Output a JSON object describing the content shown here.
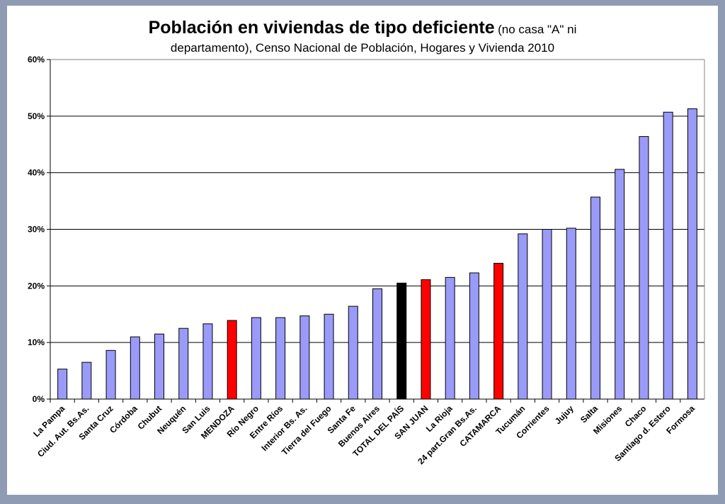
{
  "chart_data": {
    "type": "bar",
    "title": "Población en viviendas de tipo deficiente",
    "title_note": "(no casa \"A\" ni",
    "subtitle": "departamento), Censo Nacional de Población, Hogares y Vivienda 2010",
    "xlabel": "",
    "ylabel": "",
    "ylim": [
      0,
      60
    ],
    "yticks": [
      "0%",
      "10%",
      "20%",
      "30%",
      "40%",
      "50%",
      "60%"
    ],
    "grid": true,
    "legend": "none",
    "categories": [
      "La Pampa",
      "Ciud. Aut. Bs.As.",
      "Santa Cruz",
      "Córdoba",
      "Chubut",
      "Neuquén",
      "San Luis",
      "MENDOZA",
      "Río Negro",
      "Entre Ríos",
      "Interior Bs. As.",
      "Tierra del Fuego",
      "Santa Fe",
      "Buenos Aires",
      "TOTAL DEL PAÍS",
      "SAN JUAN",
      "La Rioja",
      "24 part.Gran Bs.As.",
      "CATAMARCA",
      "Tucumán",
      "Corrientes",
      "Jujuy",
      "Salta",
      "Misiones",
      "Chaco",
      "Santiago d. Estero",
      "Formosa"
    ],
    "values": [
      5.3,
      6.5,
      8.6,
      11.0,
      11.5,
      12.5,
      13.3,
      13.9,
      14.4,
      14.4,
      14.7,
      15.0,
      16.4,
      19.5,
      20.5,
      21.1,
      21.5,
      22.3,
      24.0,
      29.2,
      30.0,
      30.2,
      35.7,
      40.6,
      46.4,
      50.7,
      51.3
    ],
    "colors": [
      "#9a9af8",
      "#9a9af8",
      "#9a9af8",
      "#9a9af8",
      "#9a9af8",
      "#9a9af8",
      "#9a9af8",
      "#ff0000",
      "#9a9af8",
      "#9a9af8",
      "#9a9af8",
      "#9a9af8",
      "#9a9af8",
      "#9a9af8",
      "#000000",
      "#ff0000",
      "#9a9af8",
      "#9a9af8",
      "#ff0000",
      "#9a9af8",
      "#9a9af8",
      "#9a9af8",
      "#9a9af8",
      "#9a9af8",
      "#9a9af8",
      "#9a9af8",
      "#9a9af8"
    ]
  }
}
